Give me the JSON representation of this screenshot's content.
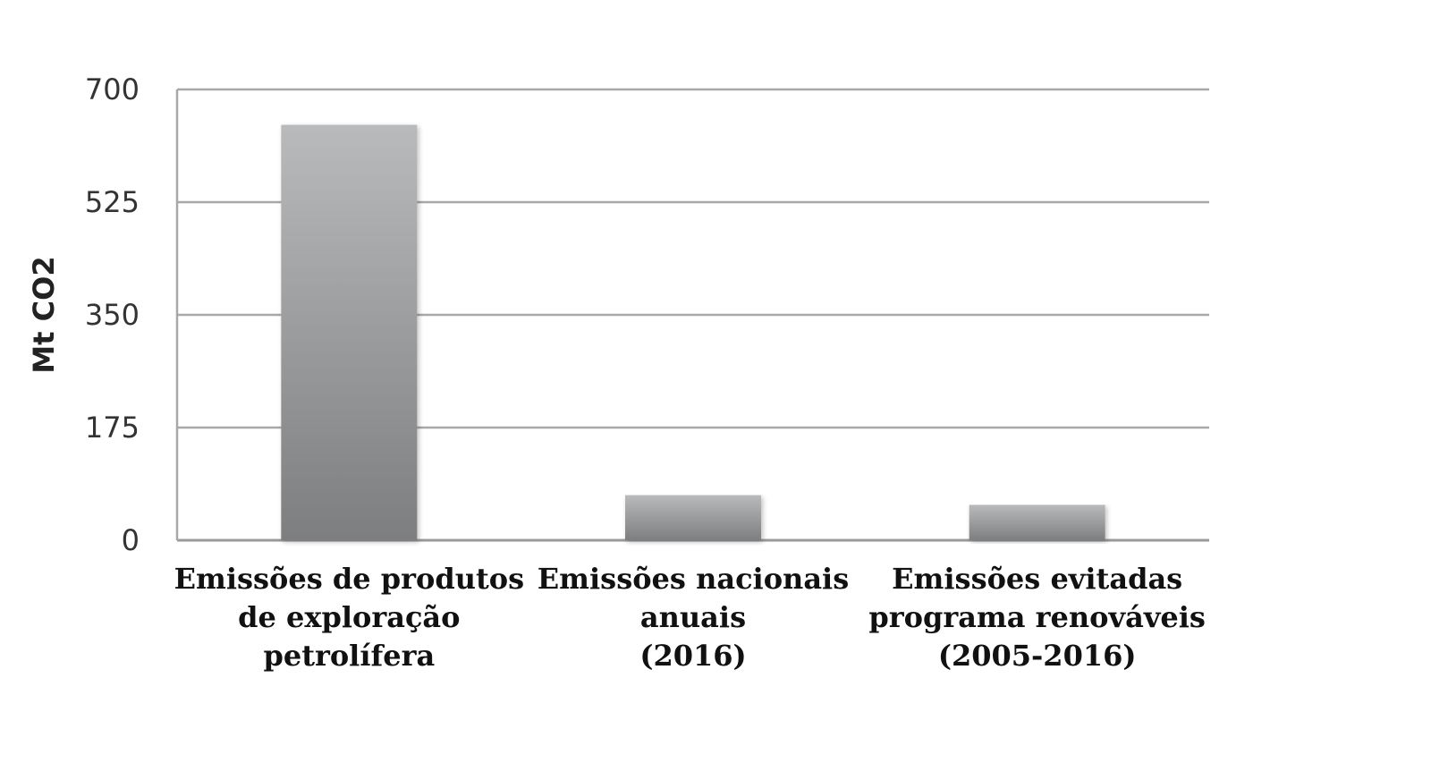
{
  "chart_data": {
    "type": "bar",
    "title": "",
    "xlabel": "",
    "ylabel": "Mt CO2",
    "ylim": [
      0,
      700
    ],
    "yticks": [
      "0",
      "175",
      "350",
      "525",
      "700"
    ],
    "grid": true,
    "legend": "none",
    "bar_color": "#8a8b8d",
    "categories": [
      [
        "Emissões de produtos",
        "de exploração",
        "petrolífera"
      ],
      [
        "Emissões nacionais",
        "anuais",
        "(2016)"
      ],
      [
        "Emissões evitadas",
        "programa renováveis",
        "(2005-2016)"
      ]
    ],
    "values": [
      645,
      70,
      55
    ]
  }
}
